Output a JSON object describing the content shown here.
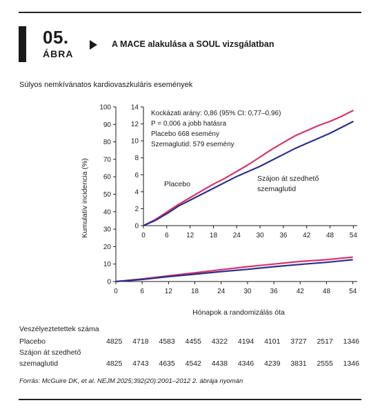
{
  "figure": {
    "number": "05.",
    "word": "ÁBRA",
    "title": "A MACE alakulása a SOUL vizsgálatban",
    "subtitle": "Súlyos nemkívánatos kardiovaszkuláris események"
  },
  "chart_data": [
    {
      "type": "line",
      "subtitle": "Súlyos nemkívánatos kardiovaszkuláris események",
      "ylabel": "Kumulatív incidencia (%)",
      "xlabel": "Hónapok a randomizálás óta",
      "xlim": [
        0,
        55
      ],
      "ylim": [
        0,
        100
      ],
      "xticks": [
        0,
        6,
        12,
        18,
        24,
        30,
        36,
        42,
        48,
        54
      ],
      "yticks": [
        0,
        10,
        20,
        30,
        40,
        50,
        60,
        70,
        80,
        90,
        100
      ],
      "series": [
        {
          "name": "Placebo",
          "color": "#d6336c",
          "x": [
            0,
            6,
            12,
            18,
            24,
            30,
            36,
            42,
            48,
            54
          ],
          "y": [
            0,
            1.5,
            3.3,
            5.0,
            6.8,
            8.5,
            10.0,
            11.5,
            12.5,
            14.0
          ]
        },
        {
          "name": "Szájon át szedhető szemaglutid",
          "color": "#2b2f8a",
          "x": [
            0,
            6,
            12,
            18,
            24,
            30,
            36,
            42,
            48,
            54
          ],
          "y": [
            0,
            1.2,
            2.8,
            4.2,
            5.7,
            7.0,
            8.5,
            9.8,
            11.0,
            12.5
          ]
        }
      ]
    },
    {
      "type": "line",
      "ylim": [
        0,
        14
      ],
      "xlim": [
        0,
        55
      ],
      "xticks": [
        0,
        6,
        12,
        18,
        24,
        30,
        36,
        42,
        48,
        54
      ],
      "yticks": [
        0,
        2,
        4,
        6,
        8,
        10,
        12,
        14
      ],
      "annotation": [
        "Kockázati arány: 0,86 (95% CI: 0,77–0,96)",
        "P = 0,006 a jobb hatásra",
        "Placebo 668 esemény",
        "Szemaglutid: 579 esemény"
      ],
      "labels": {
        "placebo": "Placebo",
        "sema_line1": "Szájon át szedhető",
        "sema_line2": "szemaglutid"
      },
      "series": [
        {
          "name": "Placebo",
          "color": "#d6336c",
          "x": [
            0,
            3,
            6,
            9,
            12,
            15,
            18,
            21,
            24,
            27,
            30,
            33,
            36,
            39,
            42,
            45,
            48,
            51,
            54
          ],
          "y": [
            0,
            0.7,
            1.6,
            2.5,
            3.3,
            4.1,
            4.9,
            5.6,
            6.4,
            7.2,
            8.1,
            9.0,
            9.8,
            10.6,
            11.2,
            11.8,
            12.3,
            12.9,
            13.6
          ]
        },
        {
          "name": "Szájon át szedhető szemaglutid",
          "color": "#2b2f8a",
          "x": [
            0,
            3,
            6,
            9,
            12,
            15,
            18,
            21,
            24,
            27,
            30,
            33,
            36,
            39,
            42,
            45,
            48,
            51,
            54
          ],
          "y": [
            0,
            0.6,
            1.4,
            2.3,
            3.0,
            3.7,
            4.4,
            5.1,
            5.8,
            6.4,
            7.0,
            7.7,
            8.4,
            9.1,
            9.7,
            10.3,
            10.9,
            11.6,
            12.3
          ]
        }
      ]
    }
  ],
  "risk_table": {
    "heading": "Veszélyeztetettek száma",
    "rows": [
      {
        "label": "Placebo",
        "label2": "",
        "values": [
          "4825",
          "4718",
          "4583",
          "4455",
          "4322",
          "4194",
          "4101",
          "3727",
          "2517",
          "1346"
        ]
      },
      {
        "label": "Szájon át szedhető",
        "label2": "szemaglutid",
        "values": [
          "4825",
          "4743",
          "4635",
          "4542",
          "4438",
          "4346",
          "4239",
          "3831",
          "2555",
          "1346"
        ]
      }
    ]
  },
  "source": "Forrás: McGuire DK, et al. NEJM 2025;392(20):2001–2012 2. ábrája nyomán"
}
